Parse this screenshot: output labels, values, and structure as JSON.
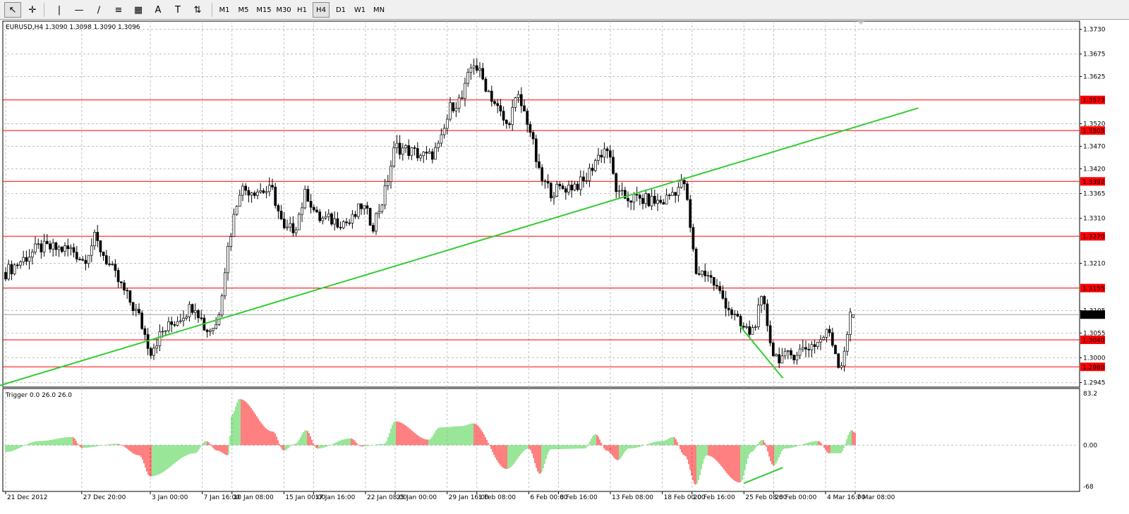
{
  "toolbar": {
    "timeframes": [
      "M1",
      "M5",
      "M15",
      "M30",
      "H1",
      "H4",
      "D1",
      "W1",
      "MN"
    ],
    "active_timeframe": "H4",
    "tools": [
      "cursor-icon",
      "crosshair-icon",
      "vertical-line-icon",
      "horizontal-line-icon",
      "trendline-icon",
      "fibonacci-icon",
      "channel-icon",
      "text-icon",
      "text-label-icon",
      "arrow-icon"
    ]
  },
  "main_panel": {
    "title": "EURUSD,H4  1.3090 1.3098 1.3090 1.3096",
    "price_labels": [
      "1.3730",
      "1.3675",
      "1.3625",
      "1.3520",
      "1.3470",
      "1.3420",
      "1.3365",
      "1.3310",
      "1.3210",
      "1.3105",
      "1.3055",
      "1.3000",
      "1.2945"
    ]
  },
  "sub_panel": {
    "title": "Trigger 0.0 26.0 26.0",
    "scale_labels": [
      "83.2",
      "0.00",
      "-68"
    ]
  },
  "date_labels": [
    "21 Dec 2012",
    "27 Dec 20:00",
    "3 Jan 00:00",
    "7 Jan 16:00",
    "10 Jan 08:00",
    "15 Jan 00:00",
    "17 Jan 16:00",
    "22 Jan 08:00",
    "25 Jan 00:00",
    "29 Jan 16:00",
    "1 Feb 08:00",
    "6 Feb 00:00",
    "8 Feb 16:00",
    "13 Feb 08:00",
    "18 Feb 00:00",
    "20 Feb 16:00",
    "25 Feb 08:00",
    "28 Feb 00:00",
    "4 Mar 16:00",
    "7 Mar 08:00"
  ],
  "chart_data": [
    {
      "type": "candlestick",
      "symbol": "EURUSD",
      "timeframe": "H4",
      "last_ohlc": {
        "open": 1.309,
        "high": 1.3098,
        "low": 1.309,
        "close": 1.3096
      },
      "current_price": "1.3096",
      "ylim": [
        1.2935,
        1.3748
      ],
      "horizontal_lines": [
        {
          "value": "1.3573",
          "color": "#ff0000"
        },
        {
          "value": "1.3505",
          "color": "#ff0000"
        },
        {
          "value": "1.3392",
          "color": "#ff0000"
        },
        {
          "value": "1.3270",
          "color": "#ff0000"
        },
        {
          "value": "1.3155",
          "color": "#ff0000"
        },
        {
          "value": "1.3040",
          "color": "#ff0000"
        },
        {
          "value": "1.2980",
          "color": "#ff0000"
        }
      ],
      "trendlines": [
        {
          "from": [
            "20 Dec 2012",
            1.2935
          ],
          "to": [
            "13 Mar 2013",
            1.3555
          ],
          "color": "#33cc33"
        },
        {
          "from": [
            "25 Feb 00:00",
            1.307
          ],
          "to": [
            "28 Feb 20:00",
            1.2955
          ],
          "color": "#33cc33"
        }
      ],
      "close_path": [
        {
          "d": "21 Dec 2012",
          "close": 1.319
        },
        {
          "d": "24 Dec 2012",
          "close": 1.3245
        },
        {
          "d": "27 Dec 2012",
          "close": 1.324
        },
        {
          "d": "28 Dec 2012",
          "close": 1.3215
        },
        {
          "d": "29 Dec 2012",
          "close": 1.3265
        },
        {
          "d": "31 Dec 2012",
          "close": 1.3175
        },
        {
          "d": "2 Jan 2013",
          "close": 1.309
        },
        {
          "d": "3 Jan 2013",
          "close": 1.3015
        },
        {
          "d": "4 Jan 2013",
          "close": 1.3055
        },
        {
          "d": "7 Jan 2013",
          "close": 1.312
        },
        {
          "d": "8 Jan 2013",
          "close": 1.306
        },
        {
          "d": "9 Jan 2013",
          "close": 1.3075
        },
        {
          "d": "10 Jan 2013",
          "close": 1.325
        },
        {
          "d": "11 Jan 2013",
          "close": 1.3375
        },
        {
          "d": "14 Jan 2013",
          "close": 1.337
        },
        {
          "d": "15 Jan 2013",
          "close": 1.328
        },
        {
          "d": "16 Jan 2013",
          "close": 1.329
        },
        {
          "d": "17 Jan 2013",
          "close": 1.337
        },
        {
          "d": "18 Jan 2013",
          "close": 1.331
        },
        {
          "d": "21 Jan 2013",
          "close": 1.33
        },
        {
          "d": "22 Jan 2013",
          "close": 1.334
        },
        {
          "d": "23 Jan 2013",
          "close": 1.3295
        },
        {
          "d": "24 Jan 2013",
          "close": 1.336
        },
        {
          "d": "25 Jan 2013",
          "close": 1.347
        },
        {
          "d": "28 Jan 2013",
          "close": 1.3445
        },
        {
          "d": "29 Jan 2013",
          "close": 1.347
        },
        {
          "d": "30 Jan 2013",
          "close": 1.356
        },
        {
          "d": "31 Jan 2013",
          "close": 1.3575
        },
        {
          "d": "1 Feb 2013",
          "close": 1.366
        },
        {
          "d": "4 Feb 2013",
          "close": 1.3515
        },
        {
          "d": "5 Feb 2013",
          "close": 1.358
        },
        {
          "d": "6 Feb 2013",
          "close": 1.352
        },
        {
          "d": "7 Feb 2013",
          "close": 1.34
        },
        {
          "d": "8 Feb 2013",
          "close": 1.337
        },
        {
          "d": "11 Feb 2013",
          "close": 1.339
        },
        {
          "d": "12 Feb 2013",
          "close": 1.344
        },
        {
          "d": "13 Feb 2013",
          "close": 1.347
        },
        {
          "d": "14 Feb 2013",
          "close": 1.336
        },
        {
          "d": "15 Feb 2013",
          "close": 1.3355
        },
        {
          "d": "18 Feb 2013",
          "close": 1.3345
        },
        {
          "d": "19 Feb 2013",
          "close": 1.337
        },
        {
          "d": "20 Feb 2013",
          "close": 1.339
        },
        {
          "d": "21 Feb 2013",
          "close": 1.319
        },
        {
          "d": "22 Feb 2013",
          "close": 1.319
        },
        {
          "d": "25 Feb 2013",
          "close": 1.307
        },
        {
          "d": "26 Feb 2013",
          "close": 1.3055
        },
        {
          "d": "27 Feb 2013",
          "close": 1.313
        },
        {
          "d": "28 Feb 2013",
          "close": 1.3005
        },
        {
          "d": "1 Mar 2013",
          "close": 1.3
        },
        {
          "d": "4 Mar 2013",
          "close": 1.3035
        },
        {
          "d": "5 Mar 2013",
          "close": 1.306
        },
        {
          "d": "6 Mar 2013",
          "close": 1.2975
        },
        {
          "d": "7 Mar 2013",
          "close": 1.3105
        },
        {
          "d": "7 Mar 2013 08:00",
          "close": 1.3096
        }
      ]
    },
    {
      "type": "histogram",
      "indicator": "Trigger",
      "params": [
        "0.0",
        "26.0",
        "26.0"
      ],
      "ylim": [
        -68,
        83.2
      ],
      "up_color": "#33cc33",
      "down_color": "#ff0000",
      "trendlines": [
        {
          "from": [
            "25 Feb 08:00",
            -56
          ],
          "to": [
            "28 Feb 20:00",
            -33
          ],
          "color": "#33cc33"
        }
      ],
      "shape": [
        {
          "d": "21 Dec 2012",
          "v": -10
        },
        {
          "d": "24 Dec 2012",
          "v": 6
        },
        {
          "d": "27 Dec 2012",
          "v": 12
        },
        {
          "d": "27 Dec 20:00",
          "v": -4
        },
        {
          "d": "31 Dec 2012",
          "v": 2
        },
        {
          "d": "2 Jan 2013",
          "v": -15
        },
        {
          "d": "3 Jan 2013",
          "v": -46
        },
        {
          "d": "7 Jan 2013",
          "v": -12
        },
        {
          "d": "8 Jan 2013",
          "v": 6
        },
        {
          "d": "9 Jan 2013",
          "v": -8
        },
        {
          "d": "10 Jan 2013",
          "v": -15
        },
        {
          "d": "10 Jan 08:00",
          "v": 45
        },
        {
          "d": "11 Jan 2013",
          "v": 68
        },
        {
          "d": "14 Jan 2013",
          "v": 20
        },
        {
          "d": "15 Jan 2013",
          "v": -8
        },
        {
          "d": "16 Jan 2013",
          "v": 2
        },
        {
          "d": "17 Jan 2013",
          "v": 22
        },
        {
          "d": "18 Jan 2013",
          "v": -5
        },
        {
          "d": "21 Jan 2013",
          "v": 10
        },
        {
          "d": "22 Jan 2013",
          "v": -2
        },
        {
          "d": "24 Jan 2013",
          "v": 2
        },
        {
          "d": "25 Jan 2013",
          "v": 35
        },
        {
          "d": "28 Jan 2013",
          "v": 8
        },
        {
          "d": "29 Jan 2013",
          "v": 26
        },
        {
          "d": "31 Jan 2013",
          "v": 28
        },
        {
          "d": "1 Feb 2013",
          "v": 32
        },
        {
          "d": "4 Feb 2013",
          "v": -35
        },
        {
          "d": "6 Feb 2013",
          "v": -5
        },
        {
          "d": "7 Feb 2013",
          "v": -42
        },
        {
          "d": "8 Feb 2013",
          "v": -6
        },
        {
          "d": "11 Feb 2013",
          "v": -5
        },
        {
          "d": "12 Feb 2013",
          "v": 16
        },
        {
          "d": "13 Feb 2013",
          "v": -8
        },
        {
          "d": "14 Feb 2013",
          "v": -22
        },
        {
          "d": "15 Feb 2013",
          "v": -5
        },
        {
          "d": "18 Feb 2013",
          "v": 6
        },
        {
          "d": "19 Feb 2013",
          "v": 12
        },
        {
          "d": "20 Feb 2013",
          "v": -15
        },
        {
          "d": "21 Feb 2013",
          "v": -58
        },
        {
          "d": "22 Feb 2013",
          "v": -15
        },
        {
          "d": "25 Feb 2013",
          "v": -55
        },
        {
          "d": "26 Feb 2013",
          "v": -10
        },
        {
          "d": "27 Feb 2013",
          "v": 8
        },
        {
          "d": "28 Feb 2013",
          "v": -30
        },
        {
          "d": "1 Mar 2013",
          "v": -5
        },
        {
          "d": "4 Mar 2013",
          "v": 6
        },
        {
          "d": "5 Mar 2013",
          "v": -12
        },
        {
          "d": "6 Mar 2013",
          "v": -12
        },
        {
          "d": "7 Mar 2013",
          "v": 22
        },
        {
          "d": "7 Mar 2013 08:00",
          "v": 18
        }
      ]
    }
  ],
  "colors": {
    "bull_body": "#ffffff",
    "bear_body": "#000000",
    "candle_outline": "#000000",
    "grid": "#c0c0c0",
    "level_line": "#ff0000",
    "label_bg": "#ff0000",
    "label_text": "#ffffff",
    "current_bg": "#000000",
    "current_text": "#ffffff",
    "trendline": "#33cc33"
  }
}
